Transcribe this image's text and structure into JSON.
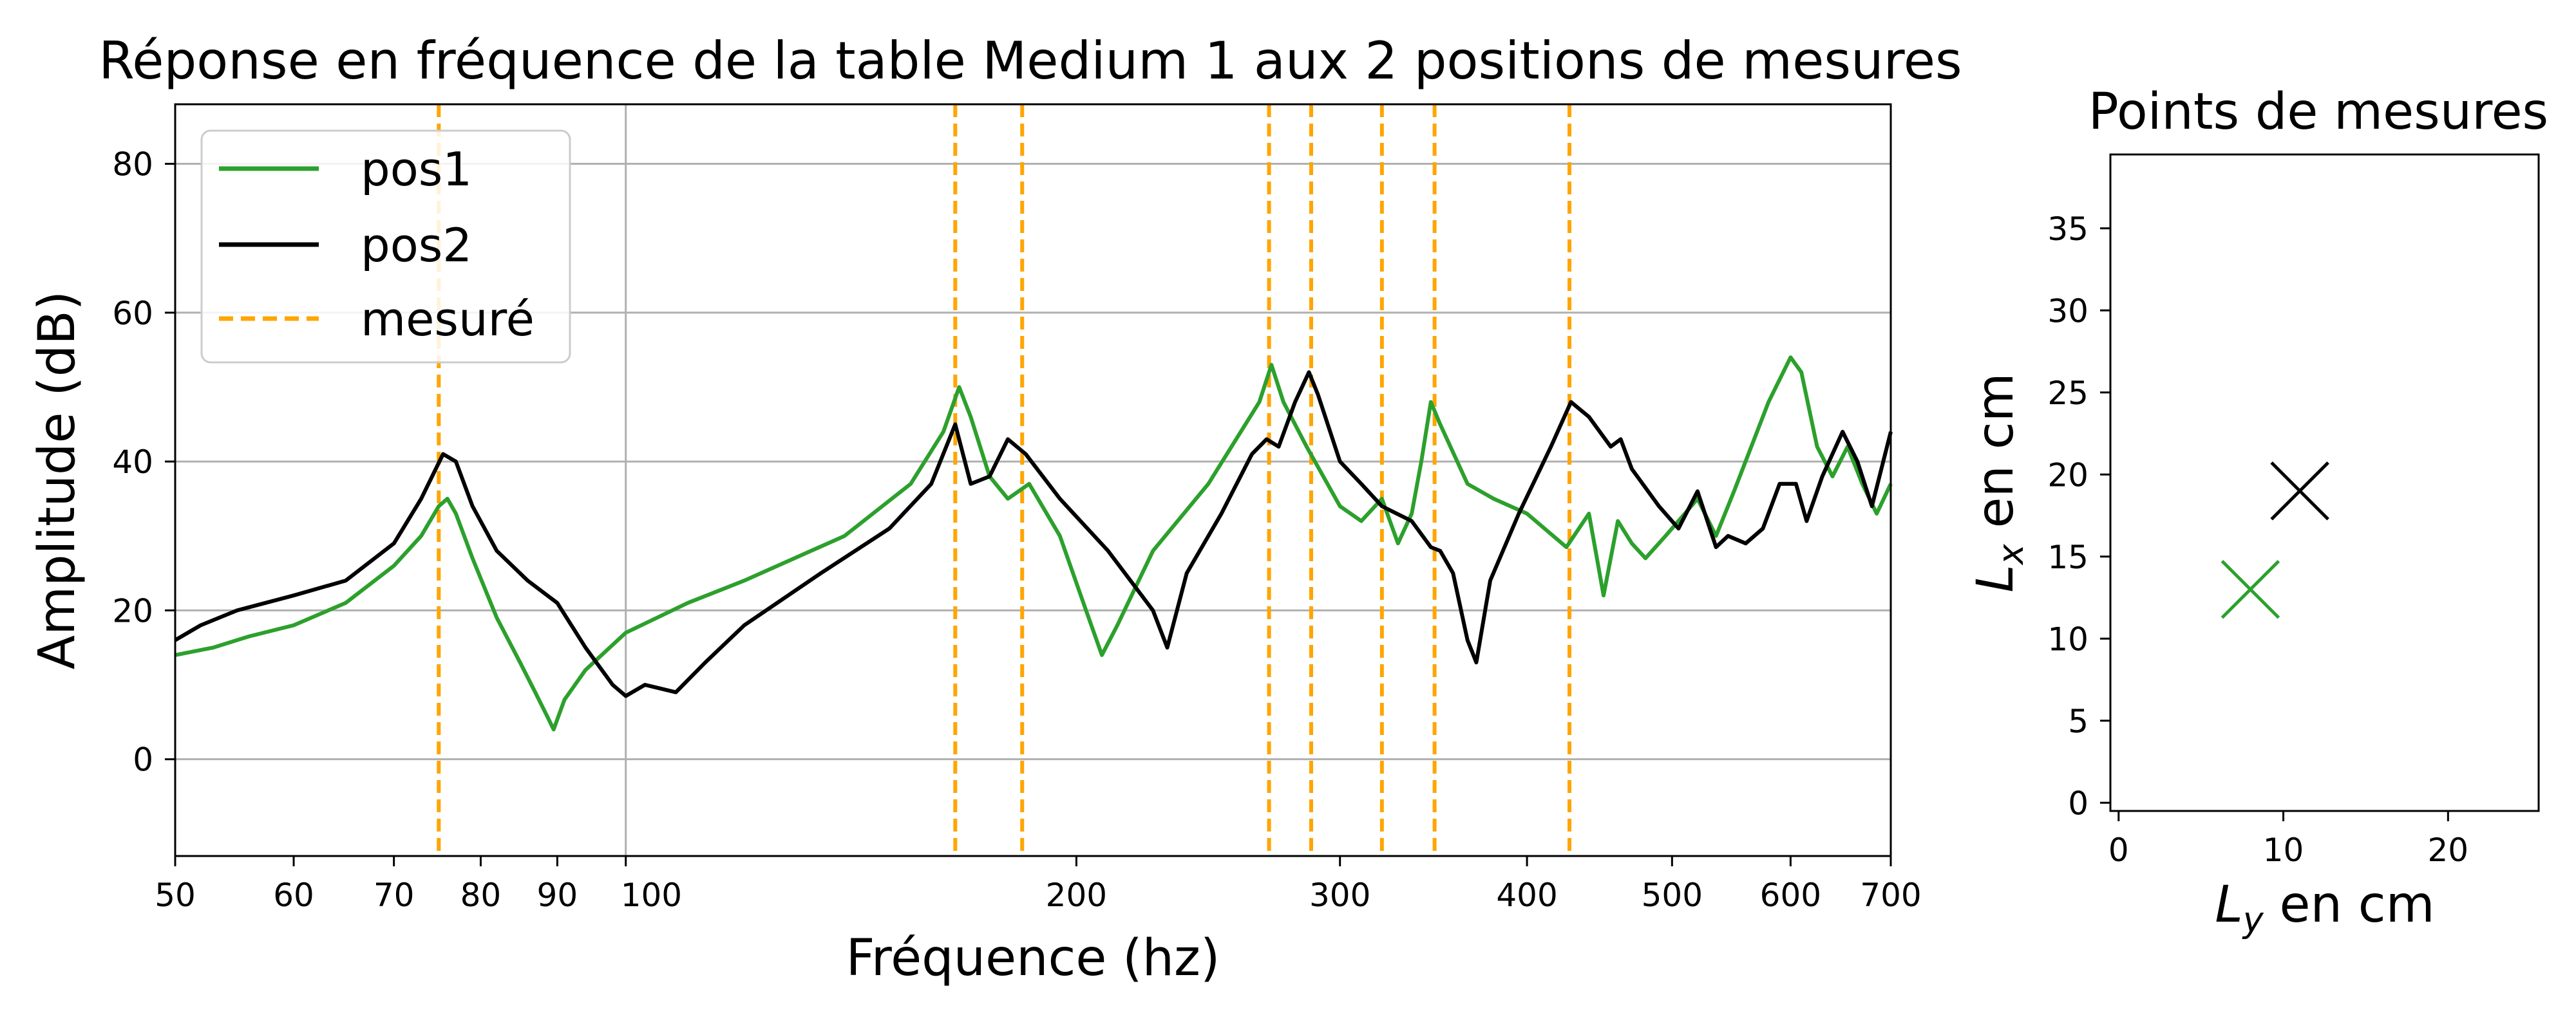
{
  "chart_data": [
    {
      "type": "line",
      "title": "Réponse en fréquence de la table Medium 1 aux 2 positions de mesures",
      "xlabel": "Fréquence (hz)",
      "ylabel": "Amplitude (dB)",
      "xscale": "log",
      "xlim": [
        50,
        700
      ],
      "ylim": [
        -13,
        88
      ],
      "xticks": [
        50,
        60,
        70,
        80,
        90,
        100,
        200,
        300,
        400,
        500,
        600,
        700
      ],
      "xtick_labels": [
        "50",
        "60",
        "70",
        "80",
        "90",
        "100",
        "200",
        "300",
        "400",
        "500",
        "600",
        "700"
      ],
      "yticks": [
        0,
        20,
        40,
        60,
        80
      ],
      "ytick_labels": [
        "0",
        "20",
        "40",
        "60",
        "80"
      ],
      "grid": true,
      "legend_position": "top-left",
      "series": [
        {
          "name": "pos1",
          "color": "#2ca02c",
          "style": "solid",
          "points": [
            [
              50,
              14
            ],
            [
              53,
              15
            ],
            [
              56,
              16.5
            ],
            [
              60,
              18
            ],
            [
              65,
              21
            ],
            [
              70,
              26
            ],
            [
              73,
              30
            ],
            [
              75,
              34
            ],
            [
              76,
              35
            ],
            [
              77,
              33
            ],
            [
              79,
              27
            ],
            [
              82,
              19
            ],
            [
              85,
              13
            ],
            [
              87,
              9
            ],
            [
              88.5,
              6
            ],
            [
              89.5,
              4
            ],
            [
              91,
              8
            ],
            [
              94,
              12
            ],
            [
              100,
              17
            ],
            [
              110,
              21
            ],
            [
              120,
              24
            ],
            [
              140,
              30
            ],
            [
              155,
              37
            ],
            [
              163,
              44
            ],
            [
              167,
              50
            ],
            [
              170,
              46
            ],
            [
              175,
              38
            ],
            [
              180,
              35
            ],
            [
              186,
              37
            ],
            [
              195,
              30
            ],
            [
              203,
              20
            ],
            [
              208,
              14
            ],
            [
              213,
              18
            ],
            [
              225,
              28
            ],
            [
              245,
              37
            ],
            [
              265,
              48
            ],
            [
              270,
              53
            ],
            [
              275,
              48
            ],
            [
              285,
              42
            ],
            [
              300,
              34
            ],
            [
              310,
              32
            ],
            [
              320,
              35
            ],
            [
              328,
              29
            ],
            [
              335,
              33
            ],
            [
              340,
              40
            ],
            [
              345,
              48
            ],
            [
              350,
              45
            ],
            [
              365,
              37
            ],
            [
              380,
              35
            ],
            [
              400,
              33
            ],
            [
              425,
              28.5
            ],
            [
              440,
              33
            ],
            [
              450,
              22
            ],
            [
              460,
              32
            ],
            [
              470,
              29
            ],
            [
              480,
              27
            ],
            [
              495,
              30
            ],
            [
              510,
              33
            ],
            [
              520,
              35
            ],
            [
              535,
              30
            ],
            [
              550,
              36
            ],
            [
              580,
              48
            ],
            [
              600,
              54
            ],
            [
              610,
              52
            ],
            [
              625,
              42
            ],
            [
              640,
              38
            ],
            [
              655,
              42
            ],
            [
              670,
              37
            ],
            [
              685,
              33
            ],
            [
              700,
              37
            ]
          ]
        },
        {
          "name": "pos2",
          "color": "#000000",
          "style": "solid",
          "points": [
            [
              50,
              16
            ],
            [
              52,
              18
            ],
            [
              55,
              20
            ],
            [
              60,
              22
            ],
            [
              65,
              24
            ],
            [
              70,
              29
            ],
            [
              73,
              35
            ],
            [
              75.5,
              41
            ],
            [
              77,
              40
            ],
            [
              79,
              34
            ],
            [
              82,
              28
            ],
            [
              86,
              24
            ],
            [
              90,
              21
            ],
            [
              94,
              15
            ],
            [
              98,
              10
            ],
            [
              100,
              8.5
            ],
            [
              103,
              10
            ],
            [
              108,
              9
            ],
            [
              113,
              13
            ],
            [
              120,
              18
            ],
            [
              135,
              25
            ],
            [
              150,
              31
            ],
            [
              160,
              37
            ],
            [
              166,
              45
            ],
            [
              170,
              37
            ],
            [
              175,
              38
            ],
            [
              180,
              43
            ],
            [
              185,
              41
            ],
            [
              195,
              35
            ],
            [
              210,
              28
            ],
            [
              225,
              20
            ],
            [
              230,
              15
            ],
            [
              237,
              25
            ],
            [
              250,
              33
            ],
            [
              262,
              41
            ],
            [
              268,
              43
            ],
            [
              273,
              42
            ],
            [
              280,
              48
            ],
            [
              286,
              52
            ],
            [
              290,
              49
            ],
            [
              300,
              40
            ],
            [
              310,
              37
            ],
            [
              320,
              34
            ],
            [
              335,
              32
            ],
            [
              345,
              28.5
            ],
            [
              350,
              28
            ],
            [
              357,
              25
            ],
            [
              365,
              16
            ],
            [
              370,
              13
            ],
            [
              378,
              24
            ],
            [
              395,
              33
            ],
            [
              415,
              42
            ],
            [
              428,
              48
            ],
            [
              440,
              46
            ],
            [
              455,
              42
            ],
            [
              462,
              43
            ],
            [
              470,
              39
            ],
            [
              490,
              34
            ],
            [
              505,
              31
            ],
            [
              520,
              36
            ],
            [
              535,
              28.5
            ],
            [
              545,
              30
            ],
            [
              560,
              29
            ],
            [
              575,
              31
            ],
            [
              590,
              37
            ],
            [
              605,
              37
            ],
            [
              615,
              32
            ],
            [
              630,
              38
            ],
            [
              650,
              44
            ],
            [
              665,
              40
            ],
            [
              680,
              34
            ],
            [
              700,
              44
            ]
          ]
        }
      ],
      "vlines": {
        "name": "mesuré",
        "color": "#ffa500",
        "style": "dashed",
        "x": [
          75,
          166,
          184,
          269,
          287,
          320,
          347,
          427
        ]
      }
    },
    {
      "type": "scatter",
      "title": "Points de mesures",
      "xlabel": "Ly en cm",
      "ylabel": "Lx en cm",
      "xlim": [
        -0.5,
        25.5
      ],
      "ylim": [
        -0.5,
        39.5
      ],
      "xticks": [
        0,
        10,
        20
      ],
      "xtick_labels": [
        "0",
        "10",
        "20"
      ],
      "yticks": [
        0,
        5,
        10,
        15,
        20,
        25,
        30,
        35
      ],
      "ytick_labels": [
        "0",
        "5",
        "10",
        "15",
        "20",
        "25",
        "30",
        "35"
      ],
      "marker": "x",
      "points": [
        {
          "x": 8,
          "y": 13,
          "color": "#2ca02c"
        },
        {
          "x": 11,
          "y": 19,
          "color": "#000000"
        }
      ]
    }
  ]
}
